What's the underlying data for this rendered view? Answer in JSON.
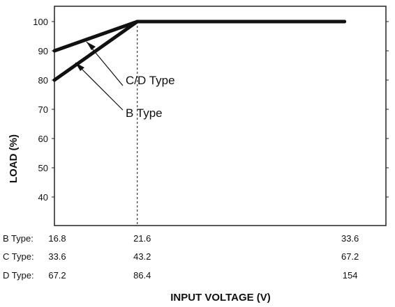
{
  "chart_data": {
    "type": "line",
    "xlabel": "INPUT VOLTAGE (V)",
    "ylabel": "LOAD (%)",
    "ylim": [
      30,
      105
    ],
    "xlim": [
      16.8,
      36.0
    ],
    "y_ticks": [
      "40",
      "50",
      "60",
      "70",
      "80",
      "90",
      "100"
    ],
    "x_rows": [
      {
        "label": "B Type:",
        "values": [
          "16.8",
          "21.6",
          "33.6"
        ]
      },
      {
        "label": "C Type:",
        "values": [
          "33.6",
          "43.2",
          "67.2"
        ]
      },
      {
        "label": "D Type:",
        "values": [
          "67.2",
          "86.4",
          "154"
        ]
      }
    ],
    "series": [
      {
        "name": "B Type",
        "x": [
          16.8,
          21.6,
          33.6
        ],
        "y": [
          80,
          100,
          100
        ]
      },
      {
        "name": "C/D Type",
        "x": [
          16.8,
          21.6,
          33.6
        ],
        "y": [
          90,
          100,
          100
        ]
      }
    ],
    "annotations": [
      "C/D Type",
      "B Type"
    ],
    "reference_line_x": 21.6,
    "grid": false,
    "colors": {
      "line": "#111111",
      "frame": "#222222"
    }
  }
}
